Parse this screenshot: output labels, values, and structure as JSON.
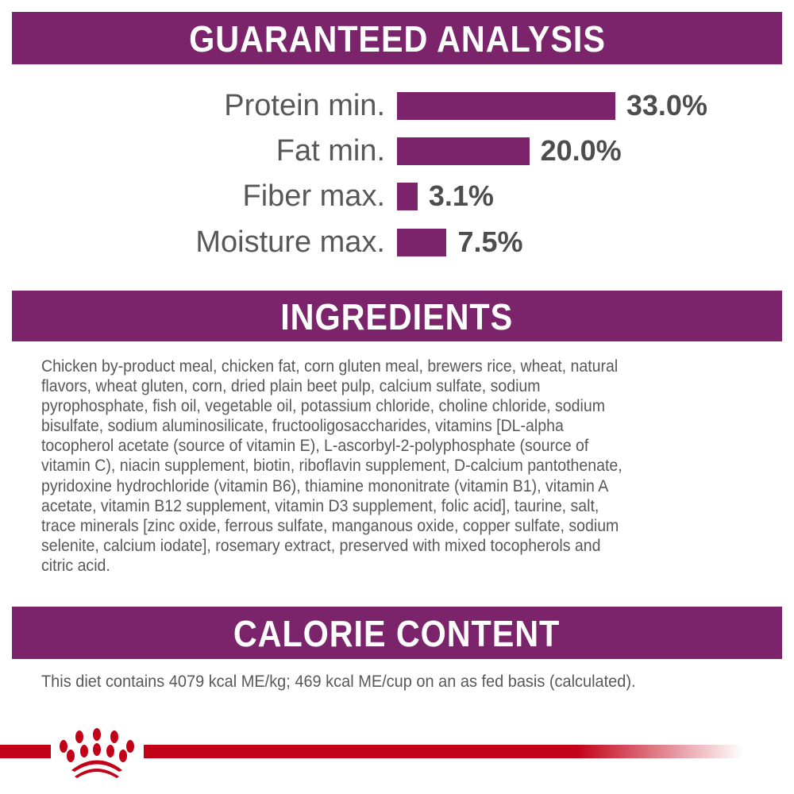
{
  "guaranteed_analysis": {
    "title": "GUARANTEED ANALYSIS",
    "rows": [
      {
        "label": "Protein min.",
        "value": "33.0%",
        "percent": 33.0
      },
      {
        "label": "Fat min.",
        "value": "20.0%",
        "percent": 20.0
      },
      {
        "label": "Fiber max.",
        "value": "3.1%",
        "percent": 3.1
      },
      {
        "label": "Moisture max.",
        "value": "7.5%",
        "percent": 7.5
      }
    ]
  },
  "ingredients": {
    "title": "INGREDIENTS",
    "lines": [
      "Chicken by-product meal, chicken fat, corn gluten meal, brewers rice, wheat, natural",
      "flavors, wheat gluten, corn, dried plain beet pulp, calcium sulfate, sodium",
      "pyrophosphate, fish oil, vegetable oil, potassium chloride, choline chloride, sodium",
      "bisulfate, sodium aluminosilicate, fructooligosaccharides, vitamins [DL-alpha",
      "tocopherol acetate (source of vitamin E), L-ascorbyl-2-polyphosphate (source of",
      "vitamin C), niacin supplement, biotin, riboflavin supplement, D-calcium pantothenate,",
      "pyridoxine hydrochloride (vitamin B6), thiamine mononitrate (vitamin B1), vitamin A",
      "acetate, vitamin B12 supplement, vitamin D3 supplement, folic acid], taurine, salt,",
      "trace minerals [zinc oxide, ferrous sulfate, manganous oxide, copper sulfate, sodium",
      "selenite, calcium iodate], rosemary extract, preserved with mixed tocopherols and",
      "citric acid."
    ]
  },
  "calorie_content": {
    "title": "CALORIE CONTENT",
    "text": "This diet contains 4079 kcal ME/kg; 469 kcal ME/cup on an as fed basis (calculated)."
  },
  "colors": {
    "band": "#7b246b",
    "bar": "#7b246b",
    "brand_red": "#c20017"
  },
  "footer": {
    "logo_icon": "royal-canin-crown-icon"
  }
}
